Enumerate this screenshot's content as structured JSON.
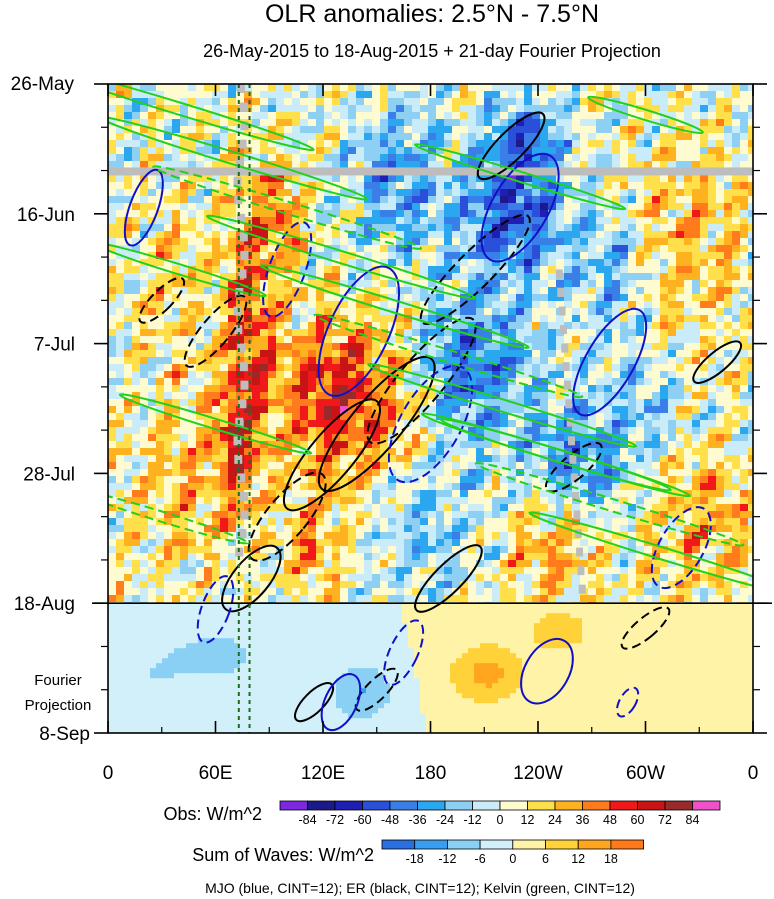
{
  "chart_data": {
    "type": "heatmap",
    "title": "OLR anomalies: 2.5°N - 7.5°N",
    "subtitle": "26-May-2015 to 18-Aug-2015 + 21-day Fourier Projection",
    "x_tick_labels": [
      "0",
      "60E",
      "120E",
      "180",
      "120W",
      "60W",
      "0"
    ],
    "x_tick_lon_east": [
      0,
      60,
      120,
      180,
      240,
      300,
      360
    ],
    "y_tick_labels": [
      "26-May",
      "16-Jun",
      "7-Jul",
      "28-Jul",
      "18-Aug",
      "8-Sep"
    ],
    "y_tick_day": [
      0,
      21,
      42,
      63,
      84,
      105
    ],
    "projection_start_day": 84,
    "projection_label": [
      "Fourier",
      "Projection"
    ],
    "obs_colorbar": {
      "label": "Obs: W/m^2",
      "ticks": [
        "-84",
        "-72",
        "-60",
        "-48",
        "-36",
        "-24",
        "-12",
        "0",
        "12",
        "24",
        "36",
        "48",
        "60",
        "72",
        "84"
      ],
      "colors": [
        "#7b28e0",
        "#1c1a8a",
        "#1f1fb4",
        "#2a4fd8",
        "#3a7ee8",
        "#2aa7ee",
        "#8ed0f4",
        "#c9ecf8",
        "#fffbd0",
        "#ffe04a",
        "#ffb21f",
        "#ff7b1c",
        "#f01818",
        "#c81414",
        "#9a2a2a",
        "#f050c8"
      ]
    },
    "waves_colorbar": {
      "label": "Sum of Waves: W/m^2",
      "ticks": [
        "-18",
        "-12",
        "-6",
        "0",
        "6",
        "12",
        "18"
      ],
      "colors": [
        "#2a6fe0",
        "#3a9ef0",
        "#8ad0f4",
        "#d2f0fa",
        "#fff3a8",
        "#ffd23a",
        "#ffa51e",
        "#ff7a1a"
      ]
    },
    "contour_legend": "MJO (blue, CINT=12); ER (black, CINT=12); Kelvin (green, CINT=12)",
    "series": [
      {
        "name": "MJO",
        "color": "#1010c8"
      },
      {
        "name": "ER",
        "color": "#000000"
      },
      {
        "name": "Kelvin",
        "color": "#22d11a"
      }
    ],
    "reference_lines_lon": [
      73,
      79
    ]
  }
}
